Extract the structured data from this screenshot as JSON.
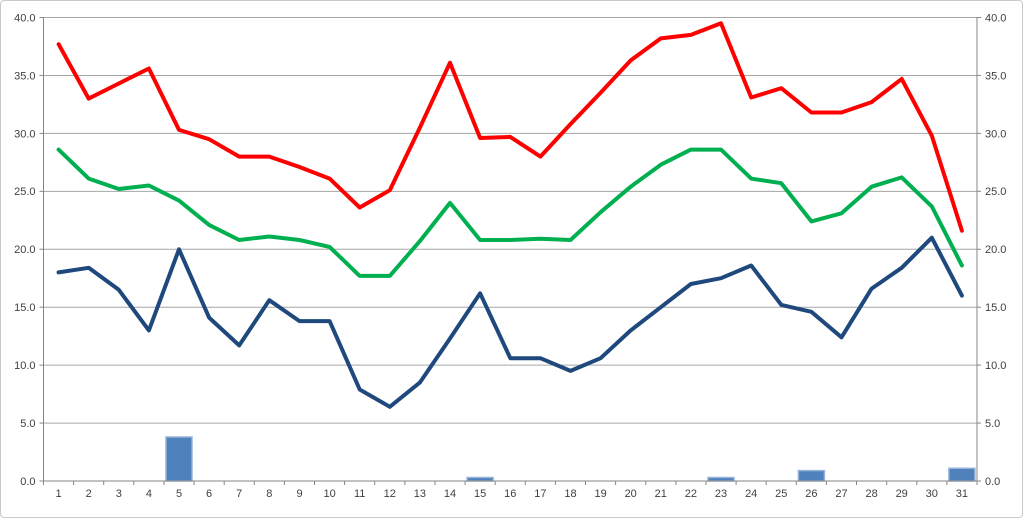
{
  "chart_data": {
    "type": "combo",
    "categories": [
      "1",
      "2",
      "3",
      "4",
      "5",
      "6",
      "7",
      "8",
      "9",
      "10",
      "11",
      "12",
      "13",
      "14",
      "15",
      "16",
      "17",
      "18",
      "19",
      "20",
      "21",
      "22",
      "23",
      "24",
      "25",
      "26",
      "27",
      "28",
      "29",
      "30",
      "31"
    ],
    "series": [
      {
        "name": "red-line-series",
        "type": "line",
        "color": "#ff0000",
        "values": [
          37.7,
          33.0,
          34.3,
          35.6,
          30.3,
          29.5,
          28.0,
          28.0,
          27.1,
          26.1,
          23.6,
          25.1,
          30.5,
          36.1,
          29.6,
          29.7,
          28.0,
          30.8,
          33.5,
          36.3,
          38.2,
          38.5,
          39.5,
          33.1,
          33.9,
          31.8,
          31.8,
          32.7,
          34.7,
          29.8,
          21.6
        ]
      },
      {
        "name": "green-line-series",
        "type": "line",
        "color": "#00b050",
        "values": [
          28.6,
          26.1,
          25.2,
          25.5,
          24.2,
          22.1,
          20.8,
          21.1,
          20.8,
          20.2,
          17.7,
          17.7,
          20.7,
          24.0,
          20.8,
          20.8,
          20.9,
          20.8,
          23.2,
          25.4,
          27.3,
          28.6,
          28.6,
          26.1,
          25.7,
          22.4,
          23.1,
          25.4,
          26.2,
          23.7,
          18.6
        ]
      },
      {
        "name": "dark-blue-line-series",
        "type": "line",
        "color": "#1f497d",
        "values": [
          18.0,
          18.4,
          16.5,
          13.0,
          20.0,
          14.1,
          11.7,
          15.6,
          13.8,
          13.8,
          7.9,
          6.4,
          8.5,
          12.3,
          16.2,
          10.6,
          10.6,
          9.5,
          10.6,
          13.0,
          15.0,
          17.0,
          17.5,
          18.6,
          15.2,
          14.6,
          12.4,
          16.6,
          18.4,
          21.0,
          16.0
        ]
      },
      {
        "name": "blue-bar-series",
        "type": "bar",
        "color": "#4f81bd",
        "border_color": "#95b3d7",
        "values": [
          0,
          0,
          0,
          0,
          3.8,
          0,
          0,
          0,
          0,
          0,
          0,
          0,
          0,
          0,
          0.3,
          0,
          0,
          0,
          0,
          0,
          0,
          0,
          0.3,
          0,
          0,
          0.9,
          0,
          0,
          0,
          0,
          1.1
        ]
      }
    ],
    "y_axis": {
      "min": 0,
      "max": 40,
      "step": 5,
      "tick_labels": [
        "0.0",
        "5.0",
        "10.0",
        "15.0",
        "20.0",
        "25.0",
        "30.0",
        "35.0",
        "40.0"
      ],
      "sides": [
        "left",
        "right"
      ]
    },
    "x_axis": {
      "tick_labels": [
        "1",
        "2",
        "3",
        "4",
        "5",
        "6",
        "7",
        "8",
        "9",
        "10",
        "11",
        "12",
        "13",
        "14",
        "15",
        "16",
        "17",
        "18",
        "19",
        "20",
        "21",
        "22",
        "23",
        "24",
        "25",
        "26",
        "27",
        "28",
        "29",
        "30",
        "31"
      ]
    },
    "grid": true,
    "legend": "none"
  },
  "styles": {
    "background": "#ffffff",
    "gridline_color": "#a6a6a6",
    "axis_color": "#868686",
    "tick_label_color": "#3f3f3f",
    "frame_border_color": "#c9c9c9"
  }
}
